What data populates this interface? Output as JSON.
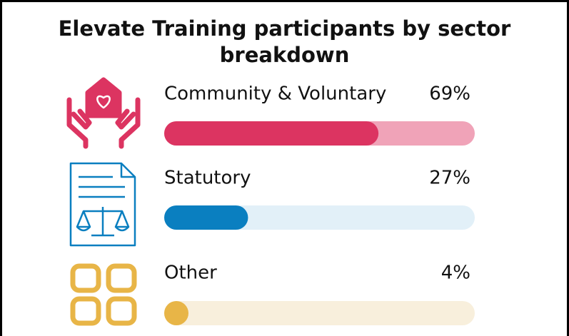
{
  "chart_data": {
    "type": "progress",
    "title": "Elevate Training participants by sector breakdown",
    "categories": [
      "Community & Voluntary",
      "Statutory",
      "Other"
    ],
    "values": [
      69,
      27,
      4
    ],
    "value_labels": [
      "69%",
      "27%",
      "4%"
    ],
    "colors": [
      "#dc3461",
      "#0a7fc0",
      "#e8b547"
    ],
    "track_colors": [
      "#f0a3b8",
      "#e2f0f8",
      "#f8efdc"
    ],
    "xlim": [
      0,
      100
    ]
  }
}
